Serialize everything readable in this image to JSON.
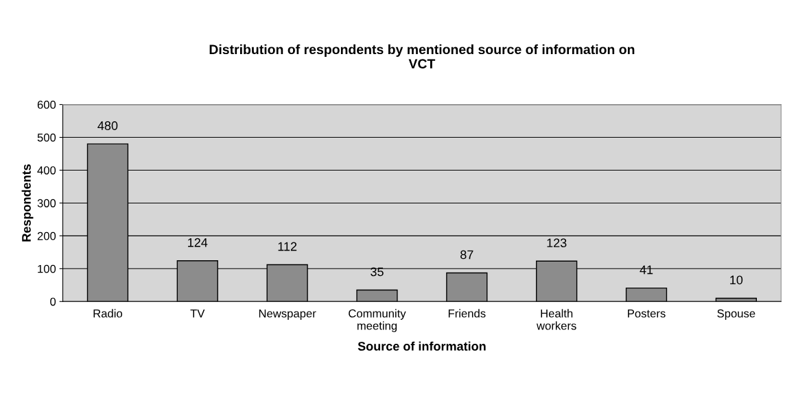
{
  "chart_data": {
    "type": "bar",
    "title": "Distribution of respondents by mentioned source of information on\nVCT",
    "xlabel": "Source of information",
    "ylabel": "Respondents",
    "categories": [
      "Radio",
      "TV",
      "Newspaper",
      "Community\nmeeting",
      "Friends",
      "Health\nworkers",
      "Posters",
      "Spouse"
    ],
    "values": [
      480,
      124,
      112,
      35,
      87,
      123,
      41,
      10
    ],
    "color": "#8c8c8c",
    "data_labels": true,
    "grid": "y",
    "legend": false,
    "ylim": [
      0,
      600
    ],
    "yticks": [
      0,
      100,
      200,
      300,
      400,
      500,
      600
    ]
  }
}
